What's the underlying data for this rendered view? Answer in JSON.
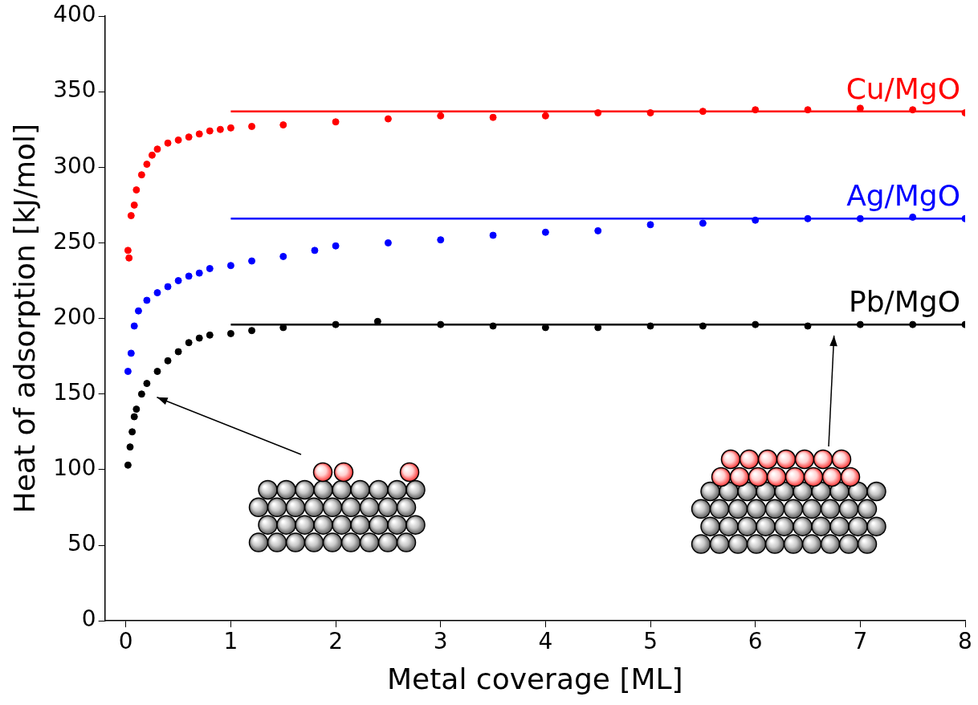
{
  "chart_data": {
    "type": "scatter",
    "xlabel": "Metal coverage [ML]",
    "ylabel": "Heat of adsorption [kJ/mol]",
    "xlim": [
      -0.2,
      8
    ],
    "xticks": [
      0,
      1,
      2,
      3,
      4,
      5,
      6,
      7,
      8
    ],
    "ylim": [
      0,
      400
    ],
    "yticks": [
      0,
      50,
      100,
      150,
      200,
      250,
      300,
      350,
      400
    ],
    "grid": false,
    "series": [
      {
        "name": "Cu/MgO",
        "color": "#ff0000",
        "marker": "circle",
        "x": [
          0.02,
          0.03,
          0.05,
          0.08,
          0.1,
          0.15,
          0.2,
          0.25,
          0.3,
          0.4,
          0.5,
          0.6,
          0.7,
          0.8,
          0.9,
          1.0,
          1.2,
          1.5,
          2.0,
          2.5,
          3.0,
          3.5,
          4.0,
          4.5,
          5.0,
          5.5,
          6.0,
          6.5,
          7.0,
          7.5,
          8.0
        ],
        "values": [
          245,
          240,
          268,
          275,
          285,
          295,
          302,
          308,
          312,
          316,
          318,
          320,
          322,
          324,
          325,
          326,
          327,
          328,
          330,
          332,
          334,
          333,
          334,
          336,
          336,
          337,
          338,
          338,
          339,
          338,
          336
        ],
        "plateau": {
          "x": [
            1,
            8
          ],
          "value": 337
        }
      },
      {
        "name": "Ag/MgO",
        "color": "#0000ff",
        "marker": "circle",
        "x": [
          0.02,
          0.05,
          0.08,
          0.12,
          0.2,
          0.3,
          0.4,
          0.5,
          0.6,
          0.7,
          0.8,
          1.0,
          1.2,
          1.5,
          1.8,
          2.0,
          2.5,
          3.0,
          3.5,
          4.0,
          4.5,
          5.0,
          5.5,
          6.0,
          6.5,
          7.0,
          7.5,
          8.0
        ],
        "values": [
          165,
          177,
          195,
          205,
          212,
          217,
          221,
          225,
          228,
          230,
          233,
          235,
          238,
          241,
          245,
          248,
          250,
          252,
          255,
          257,
          258,
          262,
          263,
          265,
          266,
          266,
          267,
          266
        ],
        "plateau": {
          "x": [
            1,
            8
          ],
          "value": 266
        }
      },
      {
        "name": "Pb/MgO",
        "color": "#000000",
        "marker": "circle",
        "x": [
          0.02,
          0.04,
          0.06,
          0.08,
          0.1,
          0.15,
          0.2,
          0.3,
          0.4,
          0.5,
          0.6,
          0.7,
          0.8,
          1.0,
          1.2,
          1.5,
          2.0,
          2.4,
          3.0,
          3.5,
          4.0,
          4.5,
          5.0,
          5.5,
          6.0,
          6.5,
          7.0,
          7.5,
          8.0
        ],
        "values": [
          103,
          115,
          125,
          135,
          140,
          150,
          157,
          165,
          172,
          178,
          184,
          187,
          189,
          190,
          192,
          194,
          196,
          198,
          196,
          195,
          194,
          194,
          195,
          195,
          196,
          195,
          196,
          196,
          196
        ],
        "plateau": {
          "x": [
            1,
            8
          ],
          "value": 196
        }
      }
    ]
  }
}
